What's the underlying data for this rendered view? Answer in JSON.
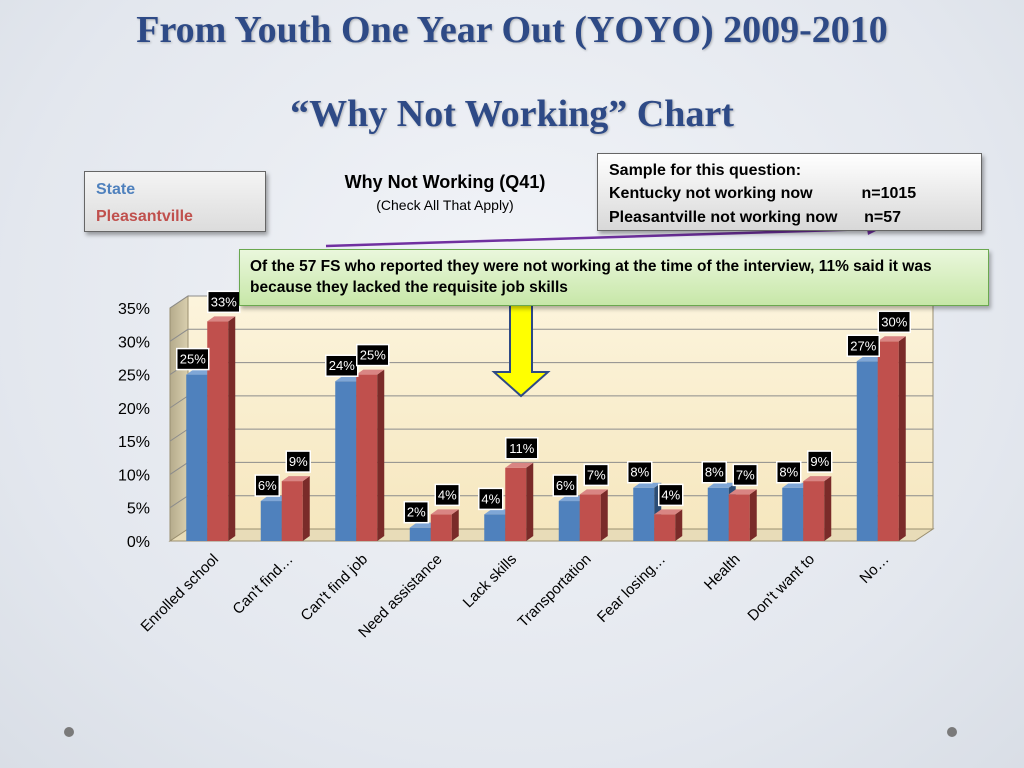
{
  "slide": {
    "title_line1": "From Youth One Year Out (YOYO) 2009-2010",
    "title_line2": "“Why Not Working” Chart"
  },
  "legend": {
    "items": [
      {
        "label": "State",
        "color": "#4f81bd"
      },
      {
        "label": "Pleasantville",
        "color": "#c0504d"
      }
    ]
  },
  "sample_box": {
    "line1": "Sample for this question:",
    "line2": "Kentucky not working now           n=1015",
    "line3": "Pleasantville not working now      n=57"
  },
  "callout": {
    "text": "Of the 57 FS who reported they were not working at the time of the interview, 11% said it was because they lacked the  requisite job skills"
  },
  "chart_data": {
    "type": "bar",
    "title": "Why Not Working (Q41)",
    "subtitle": "(Check All That Apply)",
    "categories": [
      "Enrolled school",
      "Can't find…",
      "Can't find job",
      "Need assistance",
      "Lack skills",
      "Transportation",
      "Fear losing…",
      "Health",
      "Don't want to",
      "No…"
    ],
    "series": [
      {
        "name": "State",
        "values": [
          25,
          6,
          24,
          2,
          4,
          6,
          8,
          8,
          8,
          27
        ],
        "labels": [
          "25%",
          "6%",
          "24%",
          "2%",
          "4%",
          "6%",
          "8%",
          "8%",
          "8%",
          "27%"
        ]
      },
      {
        "name": "Pleasantville",
        "values": [
          33,
          9,
          25,
          4,
          11,
          7,
          4,
          7,
          9,
          30
        ],
        "labels": [
          "33%",
          "9%",
          "25%",
          "4%",
          "11%",
          "7%",
          "4%",
          "7%",
          "9%",
          "30%"
        ]
      }
    ],
    "yticks": [
      "0%",
      "5%",
      "10%",
      "15%",
      "20%",
      "25%",
      "30%",
      "35%"
    ],
    "ylim": [
      0,
      35
    ],
    "grid": true
  }
}
